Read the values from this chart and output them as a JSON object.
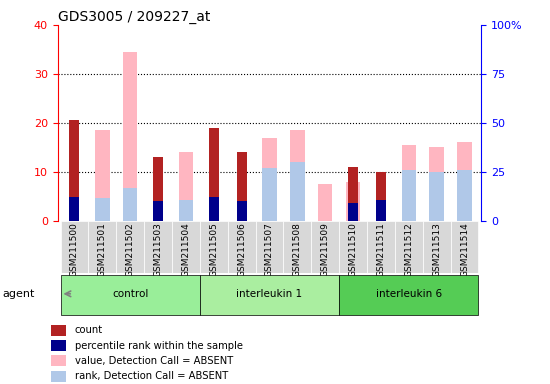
{
  "title": "GDS3005 / 209227_at",
  "samples": [
    "GSM211500",
    "GSM211501",
    "GSM211502",
    "GSM211503",
    "GSM211504",
    "GSM211505",
    "GSM211506",
    "GSM211507",
    "GSM211508",
    "GSM211509",
    "GSM211510",
    "GSM211511",
    "GSM211512",
    "GSM211513",
    "GSM211514"
  ],
  "count": [
    20.5,
    0,
    0,
    13.0,
    0,
    19.0,
    14.0,
    0,
    0,
    0,
    11.0,
    10.0,
    0,
    0,
    0
  ],
  "percentile": [
    12.0,
    0,
    0,
    10.0,
    0,
    12.0,
    10.0,
    0,
    0,
    0,
    9.0,
    10.5,
    0,
    0,
    0
  ],
  "value_absent": [
    0,
    18.5,
    34.5,
    0,
    14.0,
    0,
    0,
    17.0,
    18.5,
    7.5,
    8.0,
    0,
    15.5,
    15.0,
    16.0
  ],
  "rank_absent_pct": [
    0,
    11.5,
    16.5,
    0,
    10.5,
    0,
    0,
    27.0,
    30.0,
    0,
    0,
    0,
    26.0,
    25.0,
    26.0
  ],
  "group_defs": [
    {
      "name": "control",
      "start": 0,
      "end": 4,
      "color": "#99EE99"
    },
    {
      "name": "interleukin 1",
      "start": 5,
      "end": 9,
      "color": "#AAEEA0"
    },
    {
      "name": "interleukin 6",
      "start": 10,
      "end": 14,
      "color": "#55CC55"
    }
  ],
  "ylim_left": [
    0,
    40
  ],
  "ylim_right": [
    0,
    100
  ],
  "color_count": "#B22222",
  "color_percentile": "#00008B",
  "color_value_absent": "#FFB6C1",
  "color_rank_absent": "#B0C8E8",
  "tick_label_bg": "#D8D8D8",
  "plot_bg": "#FFFFFF"
}
